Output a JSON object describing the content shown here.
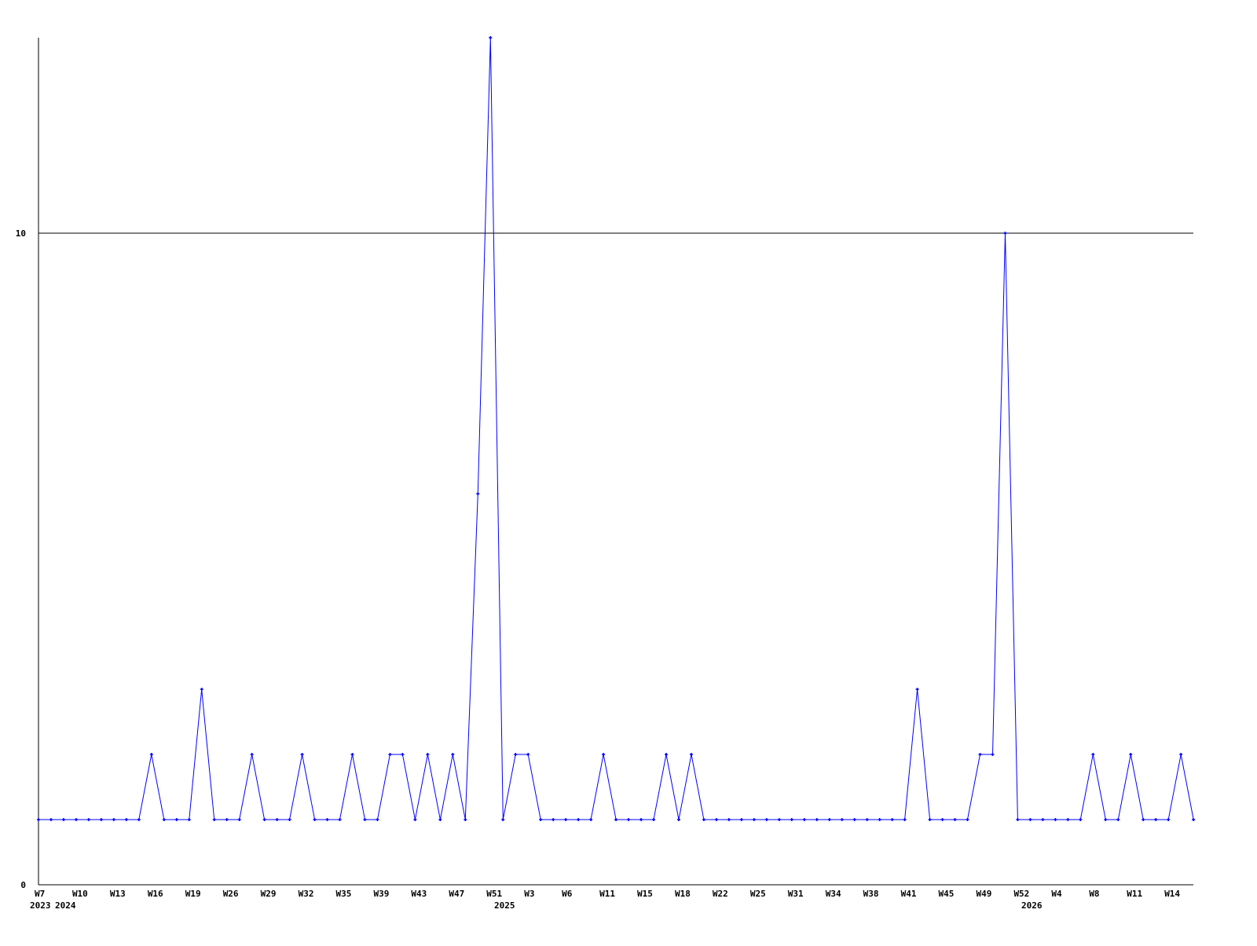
{
  "chart_data": {
    "type": "line",
    "title": "",
    "xlabel": "",
    "ylabel": "",
    "ylim": [
      0,
      13
    ],
    "yticks": [
      0,
      10
    ],
    "grid": "horizontal line at 10",
    "line_color": "#0000ff",
    "axis_color": "#000000",
    "x_tick_labels": [
      "W7",
      "W10",
      "W13",
      "W16",
      "W19",
      "W26",
      "W29",
      "W32",
      "W35",
      "W39",
      "W43",
      "W47",
      "W51",
      "W3",
      "W6",
      "W11",
      "W15",
      "W18",
      "W22",
      "W25",
      "W31",
      "W34",
      "W38",
      "W41",
      "W45",
      "W49",
      "W52",
      "W4",
      "W8",
      "W11",
      "W14"
    ],
    "year_labels": [
      "2023",
      "2024",
      "2025",
      "2026"
    ],
    "values": [
      1,
      1,
      1,
      1,
      1,
      1,
      1,
      1,
      1,
      2,
      1,
      1,
      1,
      3,
      1,
      1,
      1,
      2,
      1,
      1,
      1,
      2,
      1,
      1,
      1,
      2,
      1,
      1,
      2,
      2,
      1,
      2,
      1,
      2,
      1,
      6,
      13,
      1,
      2,
      2,
      1,
      1,
      1,
      1,
      1,
      2,
      1,
      1,
      1,
      1,
      2,
      1,
      2,
      1,
      1,
      1,
      1,
      1,
      1,
      1,
      1,
      1,
      1,
      1,
      1,
      1,
      1,
      1,
      1,
      1,
      3,
      1,
      1,
      1,
      1,
      2,
      2,
      10,
      1,
      1,
      1,
      1,
      1,
      1,
      2,
      1,
      1,
      2,
      1,
      1,
      1,
      2,
      1
    ]
  }
}
